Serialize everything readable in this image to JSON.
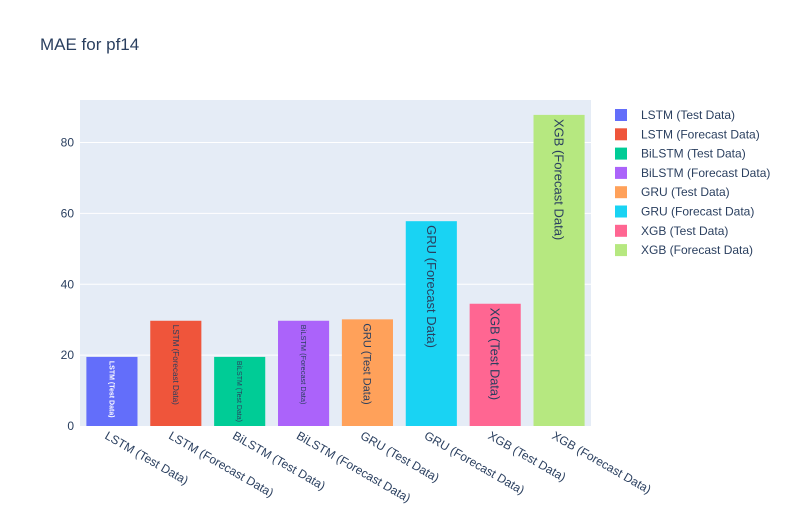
{
  "chart_data": {
    "type": "bar",
    "title": "MAE for pf14",
    "xlabel": "",
    "ylabel": "",
    "ylim": [
      0,
      92
    ],
    "yticks": [
      0,
      20,
      40,
      60,
      80
    ],
    "grid": true,
    "legend_position": "right",
    "categories": [
      "LSTM (Test Data)",
      "LSTM (Forecast Data)",
      "BiLSTM (Test Data)",
      "BiLSTM (Forecast Data)",
      "GRU (Test Data)",
      "GRU (Forecast Data)",
      "XGB (Test Data)",
      "XGB (Forecast Data)"
    ],
    "values": [
      19.5,
      29.7,
      19.5,
      29.7,
      30.1,
      57.8,
      34.5,
      87.8
    ],
    "colors": [
      "#636efa",
      "#ef553b",
      "#00cc96",
      "#ab63fa",
      "#ffa15a",
      "#19d3f3",
      "#ff6692",
      "#b6e880"
    ],
    "bar_label_colors": [
      "#ffffff",
      "#2a3f5f",
      "#2a3f5f",
      "#2a3f5f",
      "#2a3f5f",
      "#2a3f5f",
      "#2a3f5f",
      "#2a3f5f"
    ]
  }
}
